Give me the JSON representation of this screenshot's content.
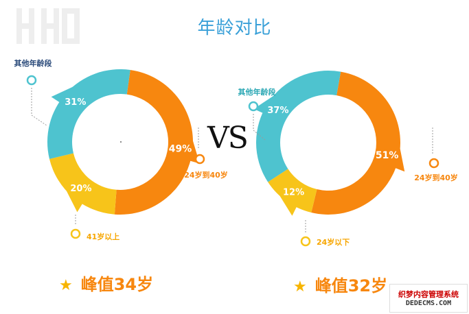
{
  "title": "年龄对比",
  "vs_label": "VS",
  "watermark": {
    "main": "织梦内容管理系统",
    "sub": "DEDECMS.COM"
  },
  "chart_data": [
    {
      "type": "pie",
      "variant": "donut",
      "categories": [
        "24岁到40岁",
        "41岁以上",
        "其他年龄段"
      ],
      "values": [
        49,
        20,
        31
      ],
      "value_labels": [
        "49%",
        "20%",
        "31%"
      ],
      "colors": [
        "#f7870f",
        "#f7c41a",
        "#4ec3cf"
      ],
      "footer": "峰值34岁"
    },
    {
      "type": "pie",
      "variant": "donut",
      "categories": [
        "24岁到40岁",
        "24岁以下",
        "其他年龄段"
      ],
      "values": [
        51,
        12,
        37
      ],
      "value_labels": [
        "51%",
        "12%",
        "37%"
      ],
      "colors": [
        "#f7870f",
        "#f7c41a",
        "#4ec3cf"
      ],
      "footer": "峰值32岁"
    }
  ]
}
